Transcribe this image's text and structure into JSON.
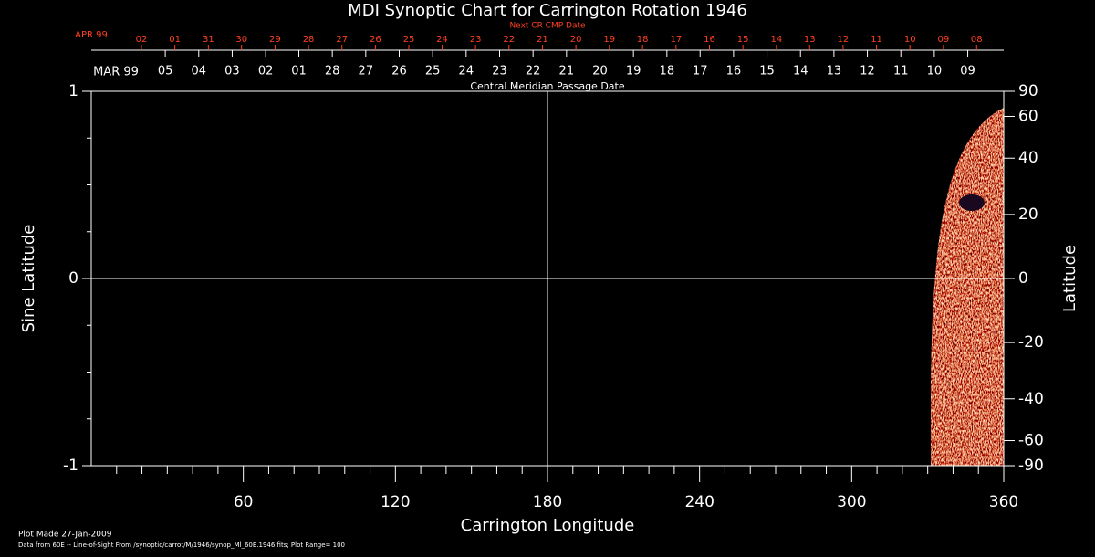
{
  "chart_data": {
    "type": "image",
    "title": "MDI Synoptic Chart for Carrington Rotation 1946",
    "x_label": "Carrington Longitude",
    "y_label": "Sine Latitude",
    "y2_label": "Latitude",
    "xlim": [
      0,
      360
    ],
    "xticks": [
      60,
      120,
      180,
      240,
      300,
      360
    ],
    "ylim": [
      -1,
      1
    ],
    "yticks": [
      1,
      0,
      -1
    ],
    "y2scale": "sine",
    "y2lim": [
      -90,
      90
    ],
    "y2ticks": [
      90,
      60,
      40,
      20,
      0,
      -20,
      -40,
      -60,
      -90
    ],
    "crosshair": {
      "x": 180,
      "y": 0
    },
    "cmp_dates": {
      "title": "Central Meridian Passage Date",
      "month": "MAR 99",
      "color": "#ffffff",
      "labels": [
        "05",
        "04",
        "03",
        "02",
        "01",
        "28",
        "27",
        "26",
        "25",
        "24",
        "23",
        "22",
        "21",
        "20",
        "19",
        "18",
        "17",
        "16",
        "15",
        "14",
        "13",
        "12",
        "11",
        "10",
        "09"
      ],
      "x": [
        29.2,
        42.4,
        55.6,
        68.8,
        81.9,
        95.1,
        108.3,
        121.5,
        134.7,
        147.9,
        161.1,
        174.3,
        187.5,
        200.7,
        213.9,
        227.1,
        240.2,
        253.4,
        266.6,
        279.8,
        293.0,
        306.2,
        319.4,
        332.6,
        345.8
      ]
    },
    "next_cmp_dates": {
      "title": "Next CR CMP Date",
      "month": "APR 99",
      "color": "#ff4020",
      "labels": [
        "02",
        "01",
        "31",
        "30",
        "29",
        "28",
        "27",
        "26",
        "25",
        "24",
        "23",
        "22",
        "21",
        "20",
        "19",
        "18",
        "17",
        "16",
        "15",
        "14",
        "13",
        "12",
        "11",
        "10",
        "09",
        "08"
      ],
      "x": [
        19.8,
        33.0,
        46.2,
        59.3,
        72.5,
        85.7,
        98.9,
        112.1,
        125.3,
        138.4,
        151.6,
        164.8,
        178.0,
        191.2,
        204.4,
        217.5,
        230.7,
        243.9,
        257.1,
        270.3,
        283.4,
        296.6,
        309.8,
        323.0,
        336.2,
        349.3
      ]
    },
    "footer": [
      "Plot Made 27-Jan-2009",
      "Data from 60E -- Line-of-Sight From /synoptic/carrot/M/1946/synop_Ml_60E.1946.fits; Plot Range=  100"
    ]
  }
}
